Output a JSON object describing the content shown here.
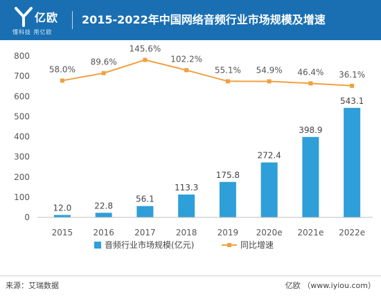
{
  "header": {
    "logo": "亿欧",
    "slogan": "懂科技 用亿欧",
    "title": "2015-2022年中国网络音频行业市场规模及增速"
  },
  "footer": {
    "source": "来源：艾瑞数据",
    "credit": "亿欧 （www.iyiou.com）"
  },
  "colors": {
    "bar": "#2e9fd8",
    "line": "#f0a040",
    "header": "#1a6fb3"
  },
  "chart_data": {
    "type": "bar",
    "categories": [
      "2015",
      "2016",
      "2017",
      "2018",
      "2019",
      "2020e",
      "2021e",
      "2022e"
    ],
    "series": [
      {
        "name": "音频行业市场规模(亿元)",
        "type": "bar",
        "values": [
          12.0,
          22.8,
          56.1,
          113.3,
          175.8,
          272.4,
          398.9,
          543.1
        ],
        "labels": [
          "12.0",
          "22.8",
          "56.1",
          "113.3",
          "175.8",
          "272.4",
          "398.9",
          "543.1"
        ]
      },
      {
        "name": "同比增速",
        "type": "line",
        "values": [
          58.0,
          89.6,
          145.6,
          102.2,
          55.1,
          54.9,
          46.4,
          36.1
        ],
        "labels": [
          "58.0%",
          "89.6%",
          "145.6%",
          "102.2%",
          "55.1%",
          "54.9%",
          "46.4%",
          "36.1%"
        ]
      }
    ],
    "yticks": [
      "0",
      "100",
      "200",
      "300",
      "400",
      "500",
      "600",
      "700",
      "800"
    ],
    "ylim": [
      0,
      800
    ],
    "legend": "bottom",
    "grid": false
  }
}
